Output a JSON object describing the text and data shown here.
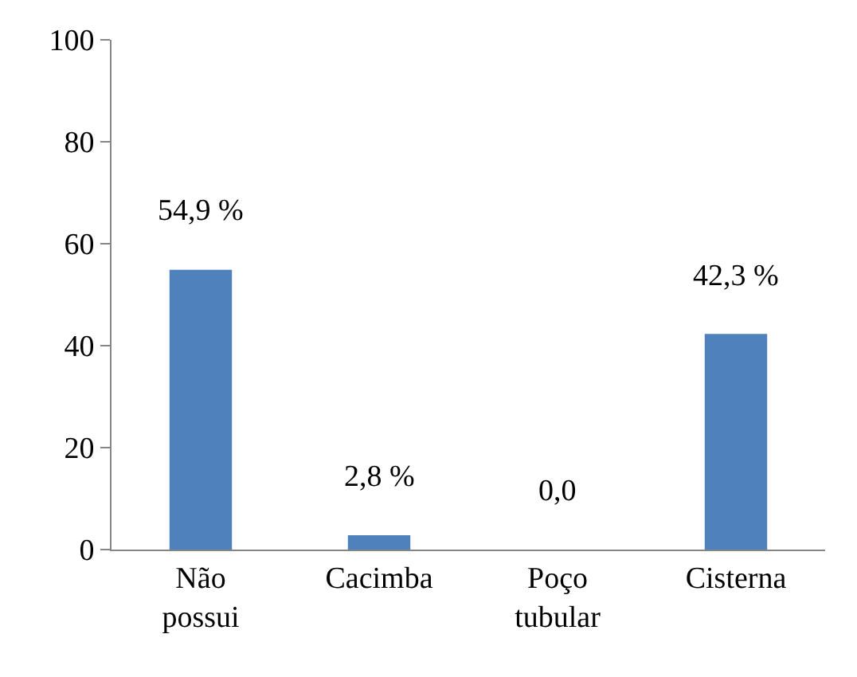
{
  "chart_data": {
    "type": "bar",
    "categories": [
      "Não possui",
      "Cacimba",
      "Poço tubular",
      "Cisterna"
    ],
    "values": [
      54.9,
      2.8,
      0.0,
      42.3
    ],
    "value_labels": [
      "54,9 %",
      "2,8 %",
      "0,0",
      "42,3 %"
    ],
    "color": "#4f81bd",
    "ylim": [
      0,
      100
    ],
    "yticks": [
      0,
      20,
      40,
      60,
      80,
      100
    ]
  }
}
